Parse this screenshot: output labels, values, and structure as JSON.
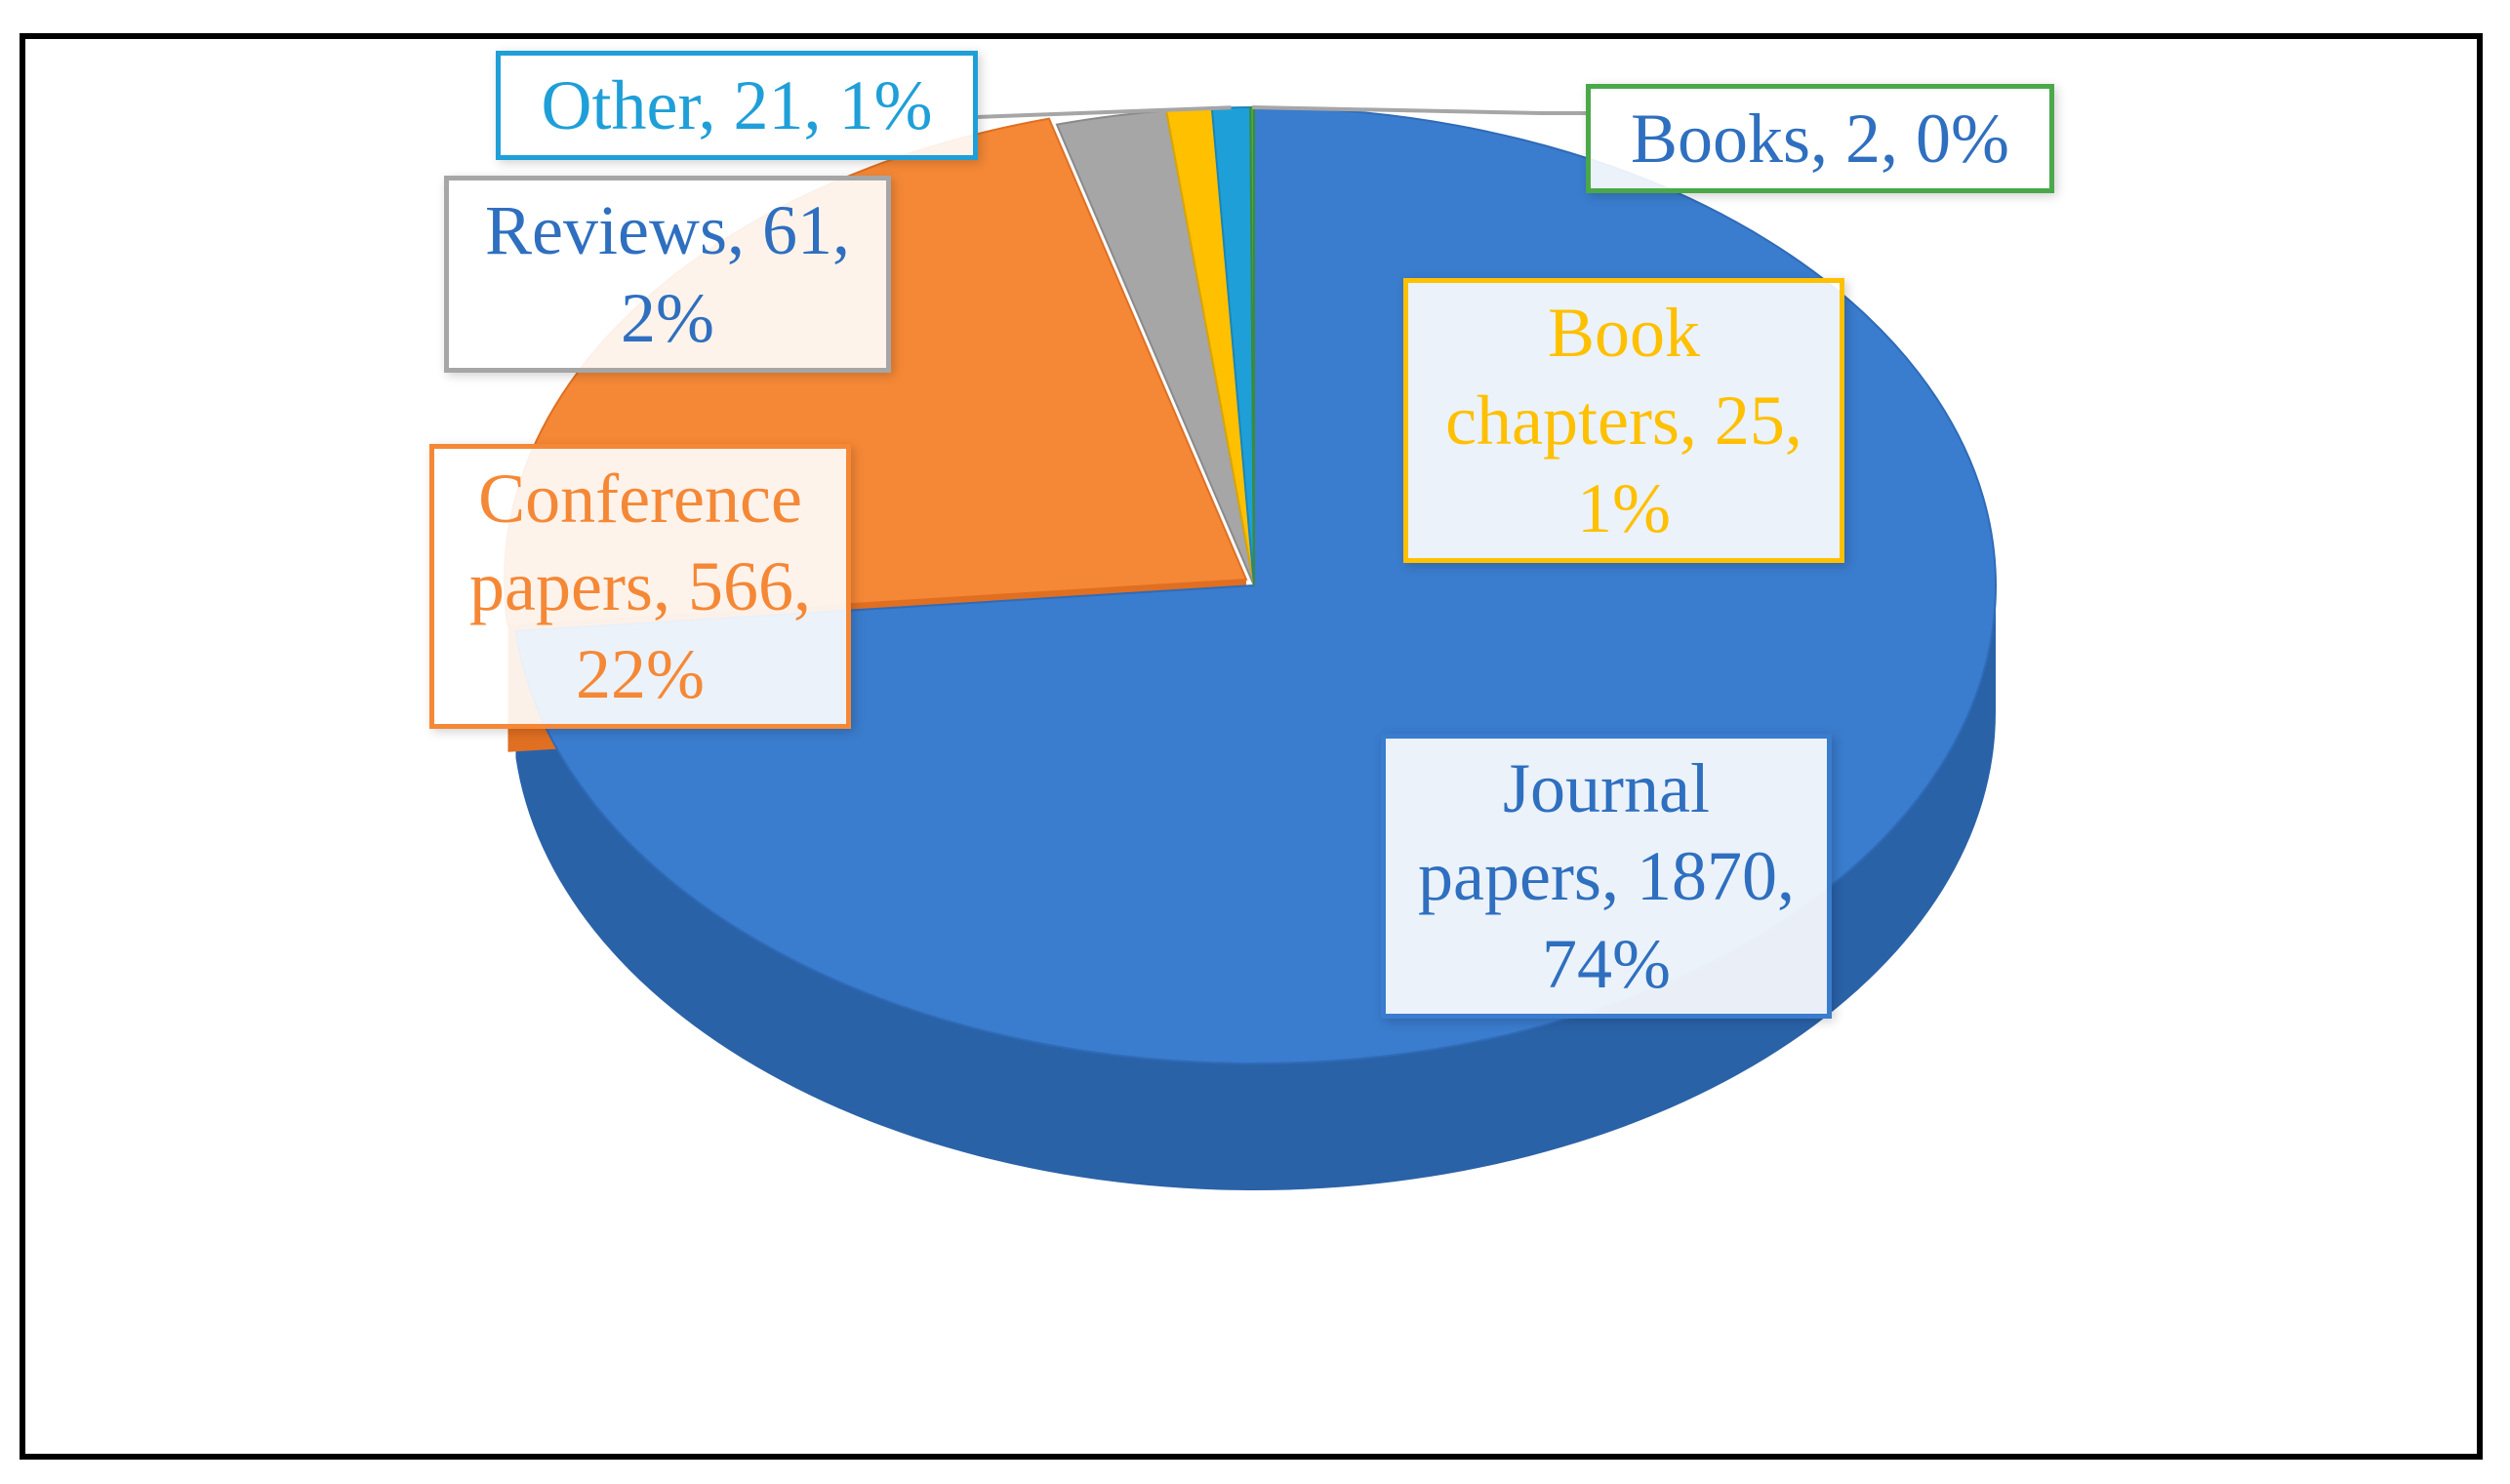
{
  "chart_data": {
    "type": "pie",
    "title": "",
    "slices": [
      {
        "category": "Journal papers",
        "value": 1870,
        "percent": "74%",
        "color": "#3a7ccd",
        "side": "#2a62a8"
      },
      {
        "category": "Conference papers",
        "value": 566,
        "percent": "22%",
        "color": "#f58836",
        "side": "#e06f22"
      },
      {
        "category": "Reviews",
        "value": 61,
        "percent": "2%",
        "color": "#a6a6a6",
        "side": "#8a8a8a"
      },
      {
        "category": "Book chapters",
        "value": 25,
        "percent": "1%",
        "color": "#ffc000",
        "side": "#dba500"
      },
      {
        "category": "Other",
        "value": 21,
        "percent": "1%",
        "color": "#1f9fd8",
        "side": "#1a86b8"
      },
      {
        "category": "Books",
        "value": 2,
        "percent": "0%",
        "color": "#4aa84a",
        "side": "#3a8c3a"
      }
    ],
    "labels": {
      "journal": [
        "Journal",
        "papers, 1870,",
        "74%"
      ],
      "conference": [
        "Conference",
        "papers, 566,",
        "22%"
      ],
      "reviews": [
        "Reviews, 61,",
        "2%"
      ],
      "book_chapters": [
        "Book",
        "chapters, 25,",
        "1%"
      ],
      "other": [
        "Other, 21, 1%"
      ],
      "books": [
        "Books, 2, 0%"
      ]
    },
    "label_colors": {
      "journal": "#2f6fbf",
      "conference": "#f58836",
      "reviews": "#2f6fbf",
      "book_chapters": "#ffc000",
      "other": "#1f9fd8",
      "books": "#2f6fbf"
    },
    "label_borders": {
      "journal": "#3a7ccd",
      "conference": "#f58836",
      "reviews": "#a6a6a6",
      "book_chapters": "#ffc000",
      "other": "#1f9fd8",
      "books": "#4aa84a"
    },
    "legend": "none"
  }
}
